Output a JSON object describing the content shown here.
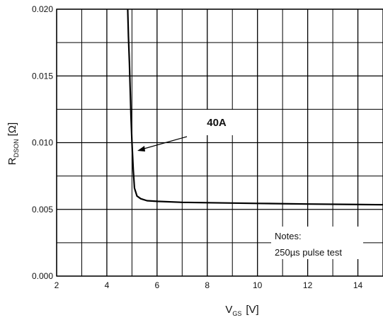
{
  "chart_data": {
    "type": "line",
    "title": "",
    "xlabel": {
      "main": "V",
      "sub": "GS",
      "unit": "[V]"
    },
    "ylabel": {
      "main": "R",
      "sub": "DSON",
      "unit": "[Ω]"
    },
    "xlim": [
      2,
      15
    ],
    "ylim": [
      0,
      0.02
    ],
    "x_ticks": [
      2,
      4,
      6,
      8,
      10,
      12,
      14
    ],
    "y_ticks": [
      0.0,
      0.005,
      0.01,
      0.015,
      0.02
    ],
    "x_tick_labels": [
      "2",
      "4",
      "6",
      "8",
      "10",
      "12",
      "14"
    ],
    "y_tick_labels": [
      "0.000",
      "0.005",
      "0.010",
      "0.015",
      "0.020"
    ],
    "grid": true,
    "series": [
      {
        "name": "40A",
        "x": [
          4.83,
          4.86,
          4.9,
          4.93,
          4.96,
          5.0,
          5.05,
          5.1,
          5.2,
          5.35,
          5.6,
          6.0,
          7.0,
          8.0,
          10.0,
          12.0,
          15.0
        ],
        "y": [
          0.02,
          0.018,
          0.016,
          0.014,
          0.012,
          0.01,
          0.008,
          0.0066,
          0.006,
          0.0058,
          0.00565,
          0.0056,
          0.00553,
          0.0055,
          0.00545,
          0.0054,
          0.00535
        ]
      }
    ],
    "annotations": {
      "curve_label": "40A",
      "notes": [
        "Notes:",
        "250µs pulse test"
      ]
    }
  }
}
